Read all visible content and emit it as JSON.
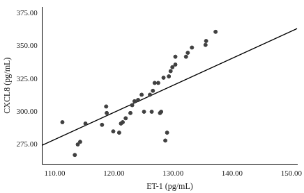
{
  "chart_data": {
    "type": "scatter",
    "x_label": "ET-1 (pg/mL)",
    "y_label": "CXCL8 (pg/mL)",
    "x": [
      111.3,
      113.4,
      113.9,
      114.3,
      115.2,
      118.0,
      118.7,
      118.8,
      119.9,
      120.9,
      121.2,
      121.5,
      122.0,
      122.8,
      123.1,
      123.5,
      124.1,
      124.7,
      125.1,
      126.1,
      126.4,
      126.6,
      126.9,
      127.5,
      127.8,
      128.0,
      128.4,
      128.7,
      129.0,
      129.3,
      129.6,
      129.9,
      130.4,
      130.4,
      132.2,
      132.5,
      133.2,
      135.5,
      135.6,
      137.2
    ],
    "values": [
      292,
      267,
      275,
      277,
      291,
      290,
      304,
      299,
      285,
      284,
      291,
      292,
      295,
      299,
      305,
      308,
      309,
      313,
      300,
      313,
      300,
      316,
      322,
      322,
      299,
      300,
      326,
      278,
      284,
      327,
      331,
      334,
      336,
      342,
      342,
      345,
      349,
      351,
      354,
      361
    ],
    "color": "#404040",
    "marker": "circle",
    "fit_line": {
      "x": [
        107.9,
        151
      ],
      "values": [
        274.5,
        363.5
      ],
      "color": "#000000"
    },
    "xlim": [
      107.9,
      151
    ],
    "ylim": [
      260,
      380
    ],
    "xticks": [
      {
        "value": 110,
        "label": "110.00"
      },
      {
        "value": 120,
        "label": "120.00"
      },
      {
        "value": 130,
        "label": "130.00"
      },
      {
        "value": 140,
        "label": "140.00"
      },
      {
        "value": 150,
        "label": "150.00"
      }
    ],
    "yticks": [
      {
        "value": 275,
        "label": "275.00"
      },
      {
        "value": 300,
        "label": "300.00"
      },
      {
        "value": 325,
        "label": "325.00"
      },
      {
        "value": 350,
        "label": "350.00"
      },
      {
        "value": 375,
        "label": "375.00"
      }
    ],
    "grid": false
  }
}
